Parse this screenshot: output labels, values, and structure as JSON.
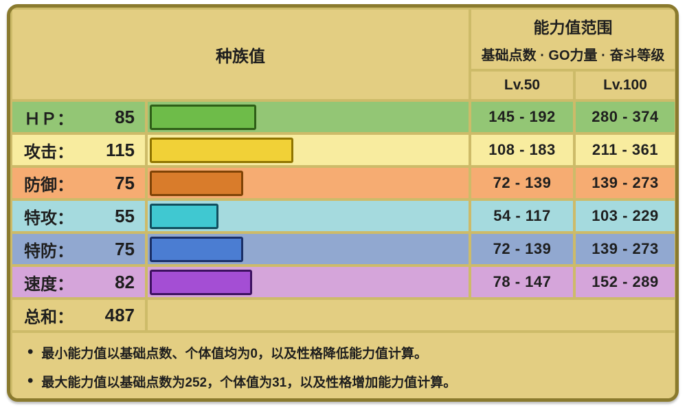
{
  "colors": {
    "frame": "#8a7a2e",
    "tan": "#e3ce82",
    "gap": "#cdbb69",
    "ink": "#1e1e1e"
  },
  "table": {
    "header": {
      "base_stats_title": "种族值",
      "range_title": "能力值范围",
      "range_subtitle": "基础点数 · GO力量 · 奋斗等级",
      "lv50": "Lv.50",
      "lv100": "Lv.100"
    },
    "max_stat": 255,
    "rows": [
      {
        "stat": "hp",
        "label": "ＨＰ：",
        "value": "85",
        "num": 85,
        "lv50": "145 - 192",
        "lv100": "280 - 374",
        "row_bg": "#93c675",
        "bar_color": "#6ebc49",
        "bar_border": "#2e5e17"
      },
      {
        "stat": "attack",
        "label": "攻击：",
        "value": "115",
        "num": 115,
        "lv50": "108 - 183",
        "lv100": "211 - 361",
        "row_bg": "#f8ec9f",
        "bar_color": "#f1d137",
        "bar_border": "#8f7400"
      },
      {
        "stat": "defense",
        "label": "防御：",
        "value": "75",
        "num": 75,
        "lv50": "72 - 139",
        "lv100": "139 - 273",
        "row_bg": "#f6ac72",
        "bar_color": "#d97c2b",
        "bar_border": "#7f4306"
      },
      {
        "stat": "sp-attack",
        "label": "特攻：",
        "value": "55",
        "num": 55,
        "lv50": "54 - 117",
        "lv100": "103 - 229",
        "row_bg": "#a5dade",
        "bar_color": "#40c8d1",
        "bar_border": "#114e5e"
      },
      {
        "stat": "sp-defense",
        "label": "特防：",
        "value": "75",
        "num": 75,
        "lv50": "72 - 139",
        "lv100": "139 - 273",
        "row_bg": "#91a8d0",
        "bar_color": "#4b7dd2",
        "bar_border": "#1a2f66"
      },
      {
        "stat": "speed",
        "label": "速度：",
        "value": "82",
        "num": 82,
        "lv50": "78 - 147",
        "lv100": "152 - 289",
        "row_bg": "#d5a5da",
        "bar_color": "#a44ed4",
        "bar_border": "#3d1160"
      }
    ],
    "total": {
      "label": "总和：",
      "value": "487",
      "num": 487
    },
    "notes": [
      "最小能力值以基础点数、个体值均为0，以及性格降低能力值计算。",
      "最大能力值以基础点数为252，个体值为31，以及性格增加能力值计算。"
    ]
  },
  "chart_data": {
    "type": "bar",
    "categories": [
      "ＨＰ",
      "攻击",
      "防御",
      "特攻",
      "特防",
      "速度"
    ],
    "values": [
      85,
      115,
      75,
      55,
      75,
      82
    ],
    "total": 487,
    "title": "种族值",
    "xlim": [
      0,
      255
    ],
    "orientation": "horizontal"
  }
}
